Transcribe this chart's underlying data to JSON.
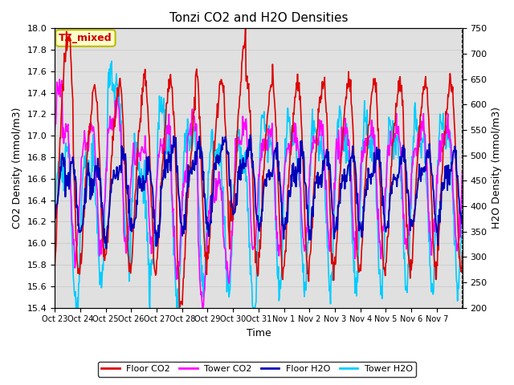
{
  "title": "Tonzi CO2 and H2O Densities",
  "xlabel": "Time",
  "ylabel_left": "CO2 Density (mmol/m3)",
  "ylabel_right": "H2O Density (mmol/m3)",
  "annotation_text": "TZ_mixed",
  "legend_labels": [
    "Floor CO2",
    "Tower CO2",
    "Floor H2O",
    "Tower H2O"
  ],
  "line_colors": [
    "#dd0000",
    "#ff00ff",
    "#0000bb",
    "#00ccff"
  ],
  "co2_ylim": [
    15.4,
    18.0
  ],
  "h2o_ylim": [
    200,
    750
  ],
  "co2_yticks": [
    15.4,
    15.6,
    15.8,
    16.0,
    16.2,
    16.4,
    16.6,
    16.8,
    17.0,
    17.2,
    17.4,
    17.6,
    17.8,
    18.0
  ],
  "h2o_yticks": [
    200,
    250,
    300,
    350,
    400,
    450,
    500,
    550,
    600,
    650,
    700,
    750
  ],
  "xtick_labels": [
    "Oct 23",
    "Oct 24",
    "Oct 25",
    "Oct 26",
    "Oct 27",
    "Oct 28",
    "Oct 29",
    "Oct 30",
    "Oct 31",
    "Nov 1",
    "Nov 2",
    "Nov 3",
    "Nov 4",
    "Nov 5",
    "Nov 6",
    "Nov 7"
  ],
  "n_days": 16,
  "grid_color": "#d0d0d0",
  "bg_color": "#e0e0e0",
  "annotation_bg": "#ffffcc",
  "annotation_edge": "#bbbb00",
  "annotation_text_color": "#cc0000",
  "figsize": [
    6.4,
    4.8
  ],
  "dpi": 100,
  "title_fontsize": 11,
  "axis_fontsize": 9,
  "tick_fontsize": 8,
  "xtick_fontsize": 7,
  "legend_fontsize": 8,
  "linewidth": 1.2
}
